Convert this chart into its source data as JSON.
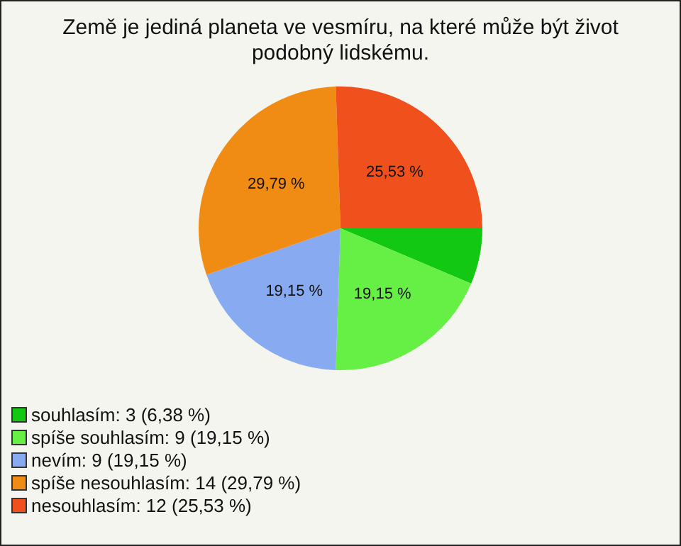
{
  "chart_data": {
    "type": "pie",
    "title": "Země je jediná planeta ve vesmíru, na které může být život podobný lidskému.",
    "categories": [
      "souhlasím: 3 (6,38 %)",
      "spíše souhlasím: 9 (19,15 %)",
      "nevím: 9 (19,15 %)",
      "spíše nesouhlasím: 14 (29,79 %)",
      "nesouhlasím: 12 (25,53 %)"
    ],
    "values": [
      6.38,
      19.15,
      19.15,
      29.79,
      25.53
    ],
    "value_labels": [
      null,
      "19,15 %",
      "19,15 %",
      "29,79 %",
      "25,53 %"
    ],
    "colors": [
      "#12c812",
      "#66f046",
      "#88aaf0",
      "#f08c14",
      "#f0501c"
    ],
    "legend": "bottom left"
  }
}
